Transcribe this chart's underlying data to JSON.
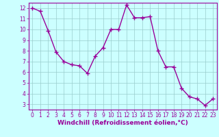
{
  "x": [
    0,
    1,
    2,
    3,
    4,
    5,
    6,
    7,
    8,
    9,
    10,
    11,
    12,
    13,
    14,
    15,
    16,
    17,
    18,
    19,
    20,
    21,
    22,
    23
  ],
  "y": [
    12,
    11.7,
    9.9,
    7.9,
    7.0,
    6.7,
    6.6,
    5.9,
    7.5,
    8.3,
    10.0,
    10.0,
    12.3,
    11.1,
    11.1,
    11.2,
    8.0,
    6.5,
    6.5,
    4.5,
    3.7,
    3.5,
    2.9,
    3.5
  ],
  "line_color": "#990099",
  "marker": "+",
  "markersize": 4,
  "linewidth": 1.0,
  "markeredgewidth": 1.0,
  "bg_color": "#ccffff",
  "grid_color": "#99cccc",
  "xlabel": "Windchill (Refroidissement éolien,°C)",
  "xlim": [
    -0.5,
    23.5
  ],
  "ylim": [
    2.5,
    12.5
  ],
  "yticks": [
    3,
    4,
    5,
    6,
    7,
    8,
    9,
    10,
    11,
    12
  ],
  "xticks": [
    0,
    1,
    2,
    3,
    4,
    5,
    6,
    7,
    8,
    9,
    10,
    11,
    12,
    13,
    14,
    15,
    16,
    17,
    18,
    19,
    20,
    21,
    22,
    23
  ],
  "tick_color": "#990099",
  "label_color": "#990099",
  "xtick_fontsize": 5.5,
  "ytick_fontsize": 6.5,
  "xlabel_fontsize": 6.5
}
